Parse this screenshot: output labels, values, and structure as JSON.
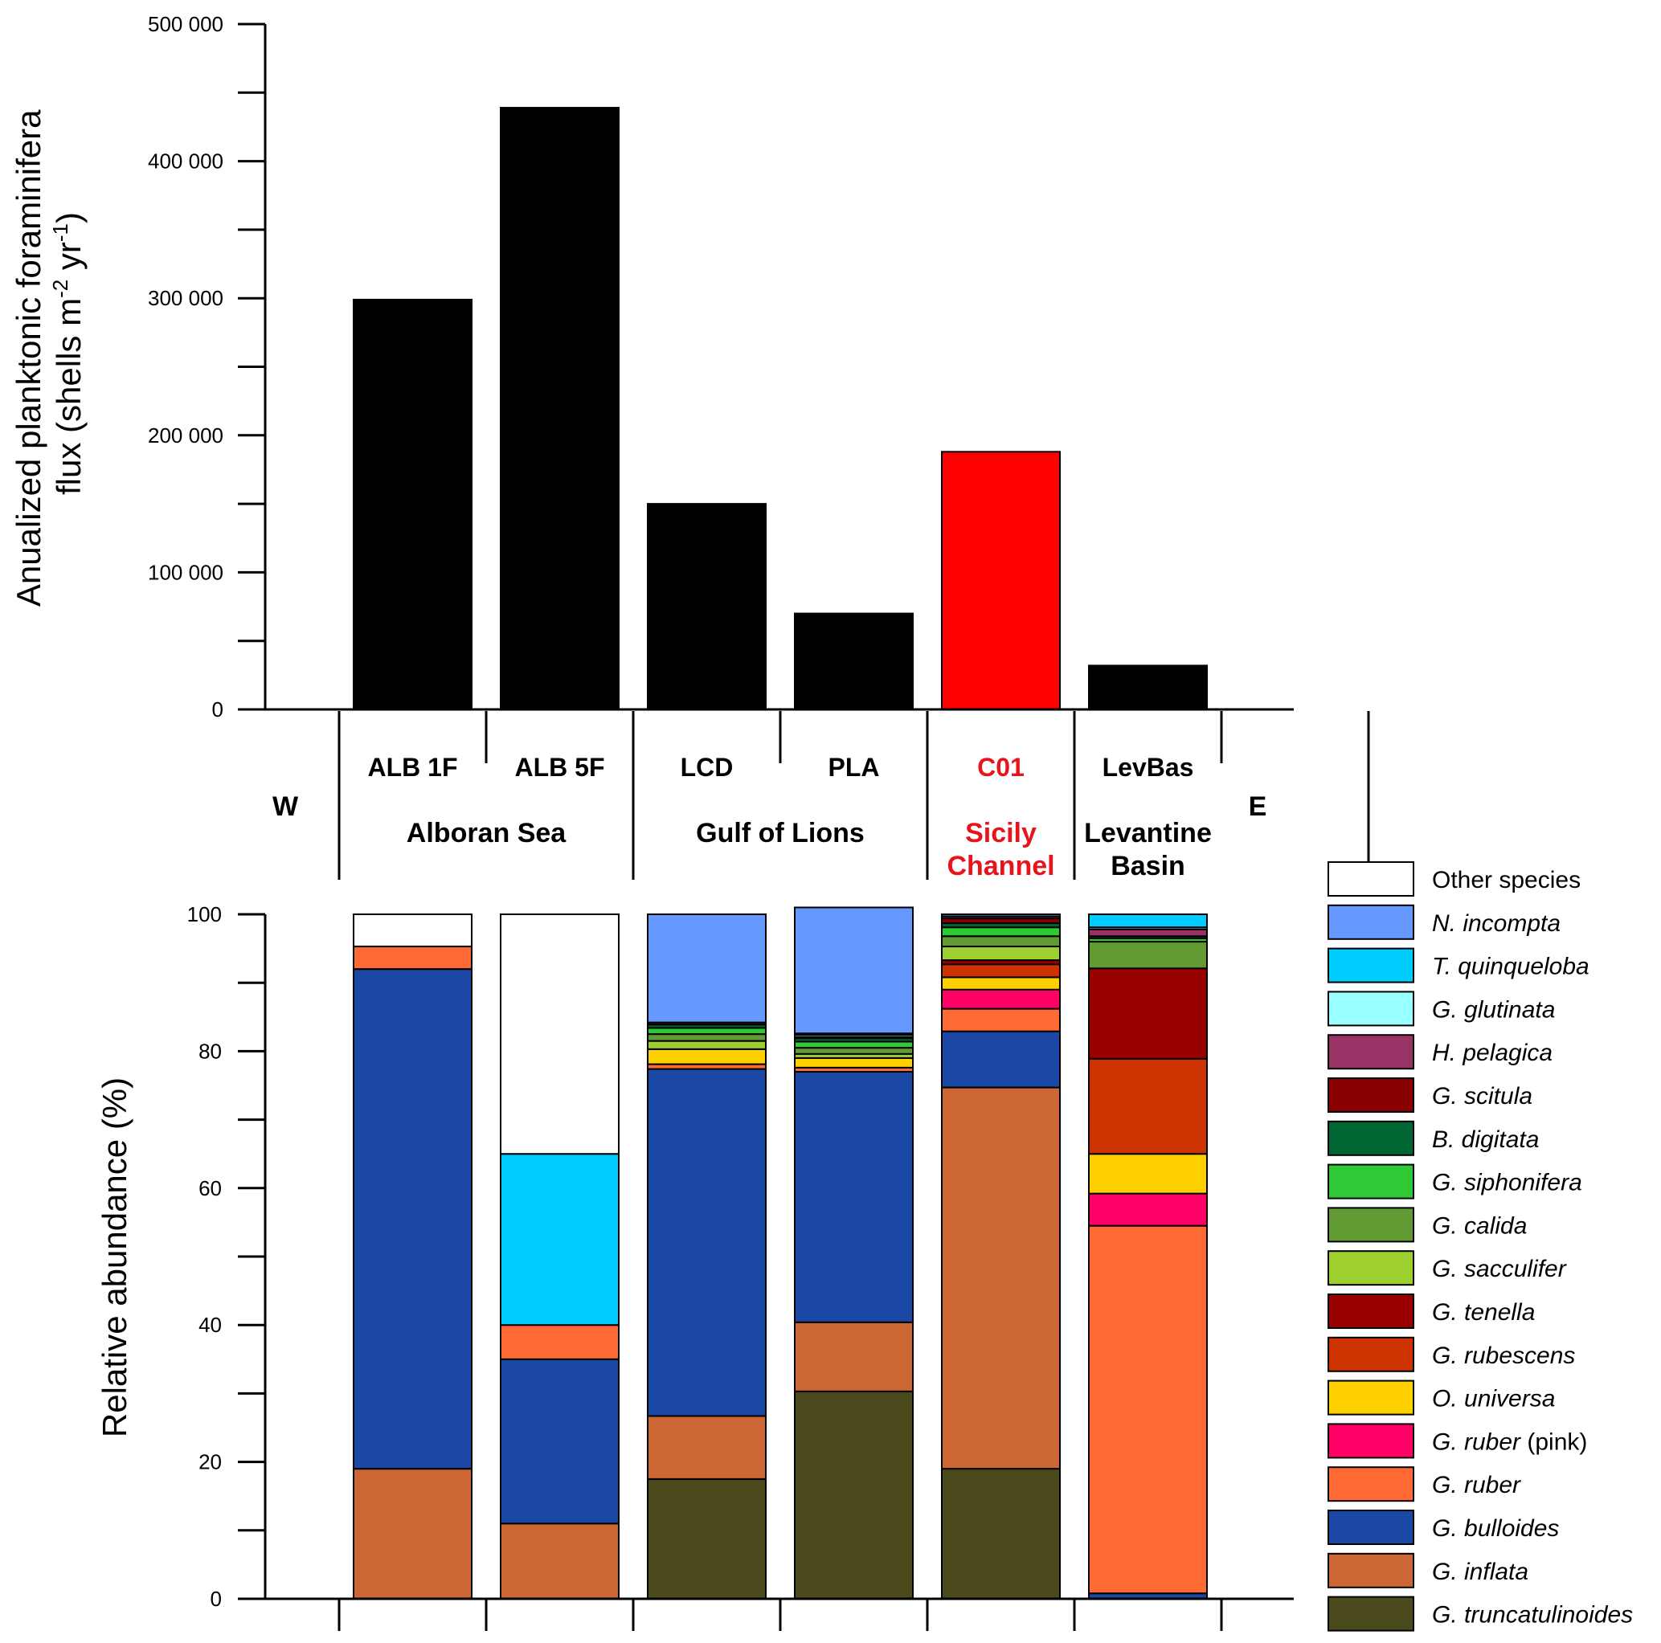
{
  "chart_data": [
    {
      "type": "bar",
      "title": "",
      "ylabel": [
        "Anualized planktonic foraminifera",
        "flux (shells m",
        "-2",
        " yr",
        "-1",
        ")"
      ],
      "ylim": [
        0,
        500000
      ],
      "yticks": [
        0,
        100000,
        200000,
        300000,
        400000,
        500000
      ],
      "ytick_labels": [
        "0",
        "100 000",
        "200 000",
        "300 000",
        "400 000",
        "500 000"
      ],
      "categories": [
        "ALB 1F",
        "ALB 5F",
        "LCD",
        "PLA",
        "C01",
        "LevBas"
      ],
      "values": [
        299000,
        439000,
        150000,
        70000,
        188000,
        32000
      ],
      "colors": [
        "#000000",
        "#000000",
        "#000000",
        "#000000",
        "#ff0000",
        "#000000"
      ],
      "grid": false
    },
    {
      "type": "bar",
      "stacked": true,
      "ylabel": "Relative abundance (%)",
      "ylim": [
        0,
        100
      ],
      "yticks": [
        0,
        20,
        40,
        60,
        80,
        100
      ],
      "ytick_labels": [
        "0",
        "20",
        "40",
        "60",
        "80",
        "100"
      ],
      "categories": [
        "ALB 1F",
        "ALB 5F",
        "LCD",
        "PLA",
        "C01",
        "LevBas"
      ],
      "series": [
        {
          "name": "G. truncatulinoides",
          "color": "#4a4a1c",
          "values": [
            0,
            0,
            17.5,
            30.3,
            19.0,
            0
          ]
        },
        {
          "name": "G. inflata",
          "color": "#cd6635",
          "values": [
            19.0,
            11.0,
            9.2,
            10.1,
            55.7,
            0
          ]
        },
        {
          "name": "G. bulloides",
          "color": "#1b47a5",
          "values": [
            73.0,
            24.0,
            50.7,
            36.6,
            8.2,
            0.8
          ]
        },
        {
          "name": "G. ruber",
          "color": "#ff6a34",
          "values": [
            3.3,
            5.0,
            0.7,
            0.6,
            3.3,
            53.7
          ]
        },
        {
          "name": "G. ruber (pink)",
          "color": "#ff0066",
          "values": [
            0,
            0,
            0,
            0,
            2.8,
            4.7
          ]
        },
        {
          "name": "O. universa",
          "color": "#ffd000",
          "values": [
            0,
            0,
            2.2,
            1.4,
            1.8,
            5.8
          ]
        },
        {
          "name": "G. rubescens",
          "color": "#cc3300",
          "values": [
            0,
            0,
            0,
            0,
            1.9,
            13.9
          ]
        },
        {
          "name": "G. tenella",
          "color": "#990000",
          "values": [
            0,
            0,
            0,
            0,
            0.6,
            13.2
          ]
        },
        {
          "name": "G. sacculifer",
          "color": "#9dcf2f",
          "values": [
            0,
            0,
            1.2,
            0.6,
            2.0,
            0
          ]
        },
        {
          "name": "G. calida",
          "color": "#629b34",
          "values": [
            0,
            0,
            1.0,
            0.9,
            1.5,
            3.9
          ]
        },
        {
          "name": "G. siphonifera",
          "color": "#2fc935",
          "values": [
            0,
            0,
            0.9,
            0.9,
            1.3,
            0.5
          ]
        },
        {
          "name": "B. digitata",
          "color": "#006633",
          "values": [
            0,
            0,
            0.5,
            0.5,
            0.6,
            0.3
          ]
        },
        {
          "name": "G. scitula",
          "color": "#880000",
          "values": [
            0,
            0,
            0.3,
            0.2,
            0.7,
            0
          ]
        },
        {
          "name": "H. pelagica",
          "color": "#993366",
          "values": [
            0,
            0,
            0,
            0,
            0.3,
            1.0
          ]
        },
        {
          "name": "G. glutinata",
          "color": "#99ffff",
          "values": [
            0,
            0,
            0,
            0.3,
            0,
            0.3
          ]
        },
        {
          "name": "T. quinqueloba",
          "color": "#00ccff",
          "values": [
            0,
            25.0,
            0,
            0.2,
            0,
            1.9
          ]
        },
        {
          "name": "N. incompta",
          "color": "#6699ff",
          "values": [
            0,
            0,
            15.8,
            18.4,
            0.3,
            0
          ]
        },
        {
          "name": "Other species",
          "color": "#ffffff",
          "values": [
            4.7,
            35.0,
            0,
            0,
            0,
            0
          ]
        }
      ],
      "legend": {
        "placement": "right",
        "entries": [
          {
            "name": "Other species",
            "species": false
          },
          {
            "name": "N. incompta",
            "species": true
          },
          {
            "name": "T. quinqueloba",
            "species": true
          },
          {
            "name": "G. glutinata",
            "species": true
          },
          {
            "name": "H. pelagica",
            "species": true
          },
          {
            "name": "G. scitula",
            "species": true
          },
          {
            "name": "B. digitata",
            "species": true
          },
          {
            "name": "G. siphonifera",
            "species": true
          },
          {
            "name": "G. calida",
            "species": true
          },
          {
            "name": "G. sacculifer",
            "species": true
          },
          {
            "name": "G. tenella",
            "species": true
          },
          {
            "name": "G. rubescens",
            "species": true
          },
          {
            "name": "O. universa",
            "species": true
          },
          {
            "name": "G. ruber",
            "species": true,
            "suffix": " (pink)"
          },
          {
            "name": "G. ruber",
            "species": true
          },
          {
            "name": "G. bulloides",
            "species": true
          },
          {
            "name": "G. inflata",
            "species": true
          },
          {
            "name": "G. truncatulinoides",
            "species": true
          }
        ]
      }
    }
  ],
  "axis_labels": {
    "sites": [
      {
        "label": "ALB 1F",
        "color": "#000000"
      },
      {
        "label": "ALB 5F",
        "color": "#000000"
      },
      {
        "label": "LCD",
        "color": "#000000"
      },
      {
        "label": "PLA",
        "color": "#000000"
      },
      {
        "label": "C01",
        "color": "#e8141c"
      },
      {
        "label": "LevBas",
        "color": "#000000"
      }
    ],
    "regions": [
      {
        "lines": [
          "Alboran Sea"
        ],
        "color": "#000000"
      },
      {
        "lines": [
          "Gulf of Lions"
        ],
        "color": "#000000"
      },
      {
        "lines": [
          "Sicily",
          "Channel"
        ],
        "color": "#e8141c"
      },
      {
        "lines": [
          "Levantine",
          "Basin"
        ],
        "color": "#000000"
      }
    ],
    "west": "W",
    "east": "E"
  }
}
